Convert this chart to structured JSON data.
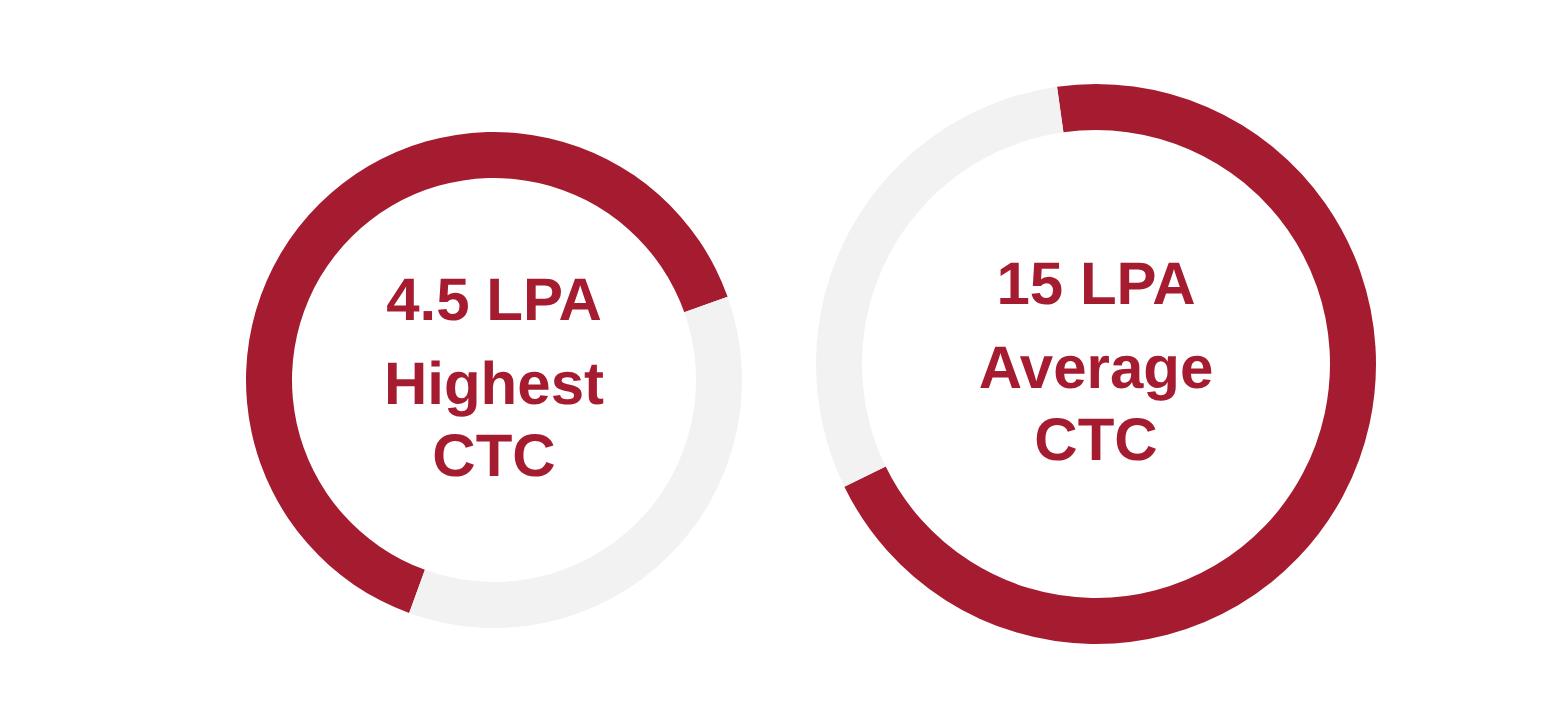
{
  "chart_data": [
    {
      "type": "donut",
      "title": "4.5 LPA",
      "subtitle": "Highest CTC",
      "categories": [
        null,
        null
      ],
      "values": [
        64,
        36
      ],
      "colors": [
        "#a51c30",
        "#f2f2f2"
      ],
      "legend": false
    },
    {
      "type": "donut",
      "title": "15 LPA",
      "subtitle": "Average CTC",
      "categories": [
        null,
        null
      ],
      "values": [
        70,
        30
      ],
      "colors": [
        "#a51c30",
        "#f2f2f2"
      ],
      "legend": false
    }
  ]
}
